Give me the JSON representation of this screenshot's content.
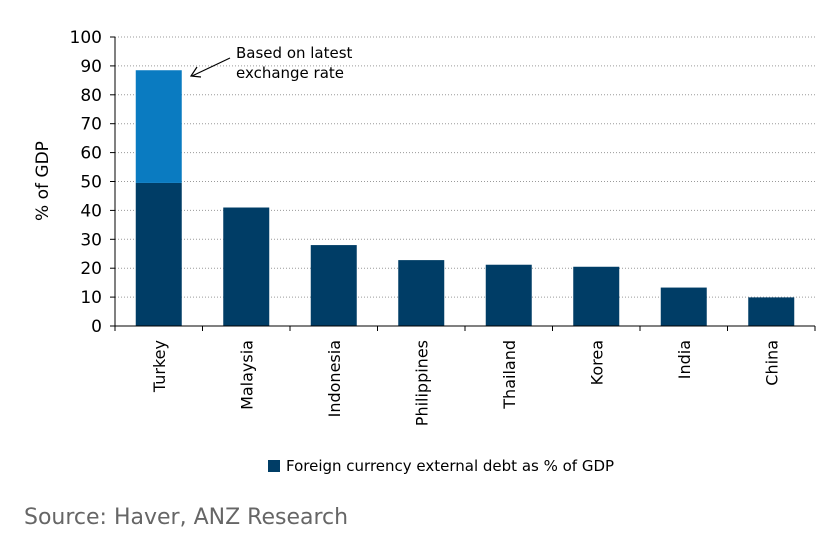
{
  "chart_data": {
    "type": "bar",
    "stacked": true,
    "categories": [
      "Turkey",
      "Malaysia",
      "Indonesia",
      "Philippines",
      "Thailand",
      "Korea",
      "India",
      "China"
    ],
    "series": [
      {
        "name": "Foreign currency external debt as % of GDP",
        "color": "#003d66",
        "values": [
          49.5,
          41,
          28,
          22.8,
          21.2,
          20.5,
          13.3,
          9.9
        ]
      },
      {
        "color": "#0a7bc1",
        "values": [
          39,
          0,
          0,
          0,
          0,
          0,
          0,
          0
        ]
      }
    ],
    "ylabel": "% of GDP",
    "xlabel": "",
    "ylim": [
      0,
      100
    ],
    "yticks": [
      0,
      10,
      20,
      30,
      40,
      50,
      60,
      70,
      80,
      90,
      100
    ],
    "grid": "horizontal dotted",
    "legend": "bottom",
    "annotation": {
      "lines": [
        "Based on latest",
        "exchange rate"
      ],
      "target_category": "Turkey"
    }
  },
  "source": "Source: Haver, ANZ Research"
}
